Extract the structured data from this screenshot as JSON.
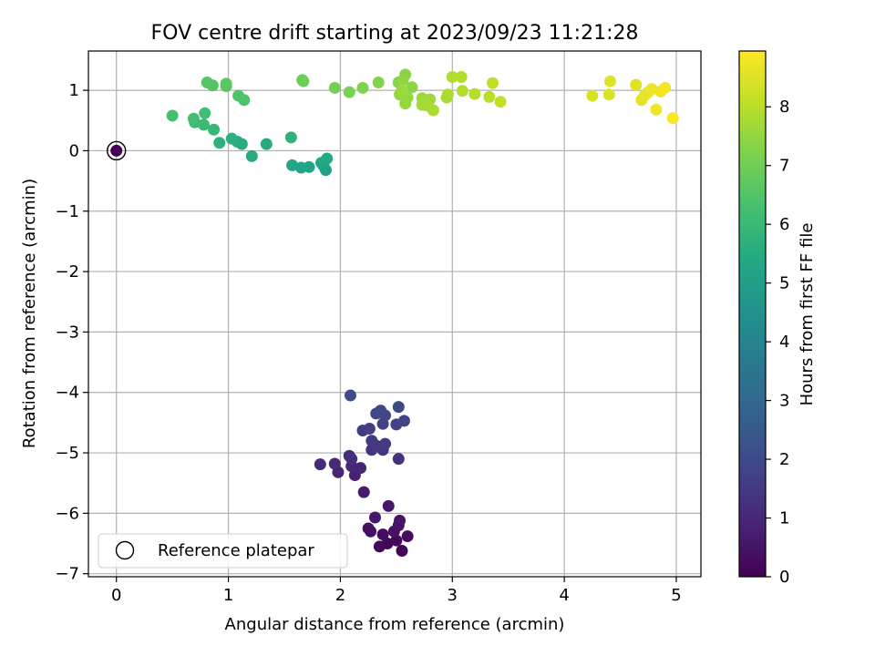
{
  "chart_data": {
    "type": "scatter",
    "title": "FOV centre drift starting at 2023/09/23 11:21:28",
    "xlabel": "Angular distance from reference (arcmin)",
    "ylabel": "Rotation from reference (arcmin)",
    "xlim": [
      -0.25,
      5.22
    ],
    "ylim": [
      -7.05,
      1.65
    ],
    "xticks": [
      0,
      1,
      2,
      3,
      4,
      5
    ],
    "yticks": [
      1,
      0,
      -1,
      -2,
      -3,
      -4,
      -5,
      -6,
      -7
    ],
    "grid": true,
    "colormap": "viridis",
    "colorbar": {
      "label": "Hours from first FF file",
      "range": [
        0,
        8.95
      ],
      "ticks": [
        0,
        1,
        2,
        3,
        4,
        5,
        6,
        7,
        8
      ]
    },
    "legend": {
      "placement": "lower-left",
      "entries": [
        {
          "label": "Reference platepar",
          "marker": "open-circle"
        }
      ]
    },
    "reference_point": {
      "x": 0,
      "y": 0,
      "hours": 0
    },
    "series": [
      {
        "name": "FOV centre",
        "points": [
          {
            "x": 2.55,
            "y": -6.62,
            "h": 0.05
          },
          {
            "x": 2.42,
            "y": -6.5,
            "h": 0.1
          },
          {
            "x": 2.35,
            "y": -6.55,
            "h": 0.15
          },
          {
            "x": 2.5,
            "y": -6.45,
            "h": 0.2
          },
          {
            "x": 2.6,
            "y": -6.38,
            "h": 0.25
          },
          {
            "x": 2.38,
            "y": -6.35,
            "h": 0.3
          },
          {
            "x": 2.25,
            "y": -6.25,
            "h": 0.35
          },
          {
            "x": 2.27,
            "y": -6.3,
            "h": 0.38
          },
          {
            "x": 2.48,
            "y": -6.3,
            "h": 0.42
          },
          {
            "x": 2.52,
            "y": -6.2,
            "h": 0.45
          },
          {
            "x": 2.53,
            "y": -6.12,
            "h": 0.5
          },
          {
            "x": 2.31,
            "y": -6.07,
            "h": 0.55
          },
          {
            "x": 2.43,
            "y": -5.88,
            "h": 0.6
          },
          {
            "x": 2.21,
            "y": -5.65,
            "h": 0.7
          },
          {
            "x": 2.13,
            "y": -5.37,
            "h": 0.8
          },
          {
            "x": 1.98,
            "y": -5.32,
            "h": 0.9
          },
          {
            "x": 2.18,
            "y": -5.25,
            "h": 0.95
          },
          {
            "x": 2.1,
            "y": -5.22,
            "h": 1.0
          },
          {
            "x": 1.82,
            "y": -5.19,
            "h": 1.05
          },
          {
            "x": 1.95,
            "y": -5.18,
            "h": 1.1
          },
          {
            "x": 2.08,
            "y": -5.05,
            "h": 1.15
          },
          {
            "x": 2.1,
            "y": -5.1,
            "h": 1.2
          },
          {
            "x": 2.52,
            "y": -5.1,
            "h": 1.3
          },
          {
            "x": 2.28,
            "y": -4.95,
            "h": 1.35
          },
          {
            "x": 2.38,
            "y": -4.95,
            "h": 1.4
          },
          {
            "x": 2.32,
            "y": -4.88,
            "h": 1.45
          },
          {
            "x": 2.4,
            "y": -4.85,
            "h": 1.5
          },
          {
            "x": 2.28,
            "y": -4.8,
            "h": 1.55
          },
          {
            "x": 2.2,
            "y": -4.63,
            "h": 1.6
          },
          {
            "x": 2.26,
            "y": -4.6,
            "h": 1.65
          },
          {
            "x": 2.38,
            "y": -4.52,
            "h": 1.7
          },
          {
            "x": 2.5,
            "y": -4.53,
            "h": 1.75
          },
          {
            "x": 2.57,
            "y": -4.47,
            "h": 1.8
          },
          {
            "x": 2.4,
            "y": -4.38,
            "h": 1.85
          },
          {
            "x": 2.32,
            "y": -4.35,
            "h": 1.9
          },
          {
            "x": 2.36,
            "y": -4.3,
            "h": 1.95
          },
          {
            "x": 2.52,
            "y": -4.24,
            "h": 2.0
          },
          {
            "x": 2.09,
            "y": -4.05,
            "h": 2.1
          },
          {
            "x": 1.87,
            "y": -0.32,
            "h": 5.1
          },
          {
            "x": 1.85,
            "y": -0.25,
            "h": 5.15
          },
          {
            "x": 1.65,
            "y": -0.28,
            "h": 5.2
          },
          {
            "x": 1.72,
            "y": -0.27,
            "h": 5.25
          },
          {
            "x": 1.57,
            "y": -0.24,
            "h": 5.3
          },
          {
            "x": 1.83,
            "y": -0.2,
            "h": 5.35
          },
          {
            "x": 1.88,
            "y": -0.13,
            "h": 5.4
          },
          {
            "x": 1.21,
            "y": -0.09,
            "h": 5.45
          },
          {
            "x": 1.34,
            "y": 0.11,
            "h": 5.5
          },
          {
            "x": 1.12,
            "y": 0.11,
            "h": 5.55
          },
          {
            "x": 1.08,
            "y": 0.15,
            "h": 5.6
          },
          {
            "x": 1.03,
            "y": 0.2,
            "h": 5.65
          },
          {
            "x": 0.92,
            "y": 0.13,
            "h": 5.7
          },
          {
            "x": 1.56,
            "y": 0.22,
            "h": 5.75
          },
          {
            "x": 0.87,
            "y": 0.35,
            "h": 6.0
          },
          {
            "x": 0.78,
            "y": 0.43,
            "h": 6.05
          },
          {
            "x": 0.7,
            "y": 0.47,
            "h": 6.1
          },
          {
            "x": 0.69,
            "y": 0.53,
            "h": 6.15
          },
          {
            "x": 0.79,
            "y": 0.62,
            "h": 6.2
          },
          {
            "x": 0.5,
            "y": 0.58,
            "h": 6.25
          },
          {
            "x": 1.14,
            "y": 0.84,
            "h": 6.4
          },
          {
            "x": 1.09,
            "y": 0.91,
            "h": 6.45
          },
          {
            "x": 0.86,
            "y": 1.08,
            "h": 6.5
          },
          {
            "x": 0.81,
            "y": 1.13,
            "h": 6.55
          },
          {
            "x": 0.98,
            "y": 1.07,
            "h": 6.6
          },
          {
            "x": 0.98,
            "y": 1.11,
            "h": 6.65
          },
          {
            "x": 1.66,
            "y": 1.17,
            "h": 6.9
          },
          {
            "x": 1.67,
            "y": 1.15,
            "h": 6.95
          },
          {
            "x": 1.95,
            "y": 1.04,
            "h": 7.05
          },
          {
            "x": 2.08,
            "y": 0.97,
            "h": 7.15
          },
          {
            "x": 2.2,
            "y": 1.04,
            "h": 7.2
          },
          {
            "x": 2.34,
            "y": 1.13,
            "h": 7.25
          },
          {
            "x": 2.52,
            "y": 1.13,
            "h": 7.3
          },
          {
            "x": 2.58,
            "y": 1.26,
            "h": 7.35
          },
          {
            "x": 2.64,
            "y": 1.05,
            "h": 7.4
          },
          {
            "x": 2.56,
            "y": 1.17,
            "h": 7.45
          },
          {
            "x": 2.53,
            "y": 0.93,
            "h": 7.5
          },
          {
            "x": 2.6,
            "y": 0.88,
            "h": 7.52
          },
          {
            "x": 2.58,
            "y": 0.78,
            "h": 7.55
          },
          {
            "x": 2.55,
            "y": 1.0,
            "h": 7.6
          },
          {
            "x": 2.73,
            "y": 0.87,
            "h": 7.62
          },
          {
            "x": 2.77,
            "y": 0.82,
            "h": 7.65
          },
          {
            "x": 2.8,
            "y": 0.85,
            "h": 7.7
          },
          {
            "x": 2.73,
            "y": 0.76,
            "h": 7.72
          },
          {
            "x": 2.77,
            "y": 0.75,
            "h": 7.75
          },
          {
            "x": 2.83,
            "y": 0.67,
            "h": 7.78
          },
          {
            "x": 2.95,
            "y": 0.88,
            "h": 7.8
          },
          {
            "x": 2.96,
            "y": 0.93,
            "h": 7.82
          },
          {
            "x": 3.0,
            "y": 1.22,
            "h": 7.85
          },
          {
            "x": 3.08,
            "y": 1.22,
            "h": 7.9
          },
          {
            "x": 3.09,
            "y": 0.99,
            "h": 7.92
          },
          {
            "x": 3.2,
            "y": 0.94,
            "h": 7.95
          },
          {
            "x": 3.33,
            "y": 0.89,
            "h": 8.0
          },
          {
            "x": 3.36,
            "y": 1.12,
            "h": 8.05
          },
          {
            "x": 3.43,
            "y": 0.81,
            "h": 8.1
          },
          {
            "x": 4.25,
            "y": 0.91,
            "h": 8.4
          },
          {
            "x": 4.4,
            "y": 0.93,
            "h": 8.45
          },
          {
            "x": 4.41,
            "y": 1.15,
            "h": 8.5
          },
          {
            "x": 4.64,
            "y": 1.09,
            "h": 8.55
          },
          {
            "x": 4.69,
            "y": 0.84,
            "h": 8.6
          },
          {
            "x": 4.72,
            "y": 0.92,
            "h": 8.62
          },
          {
            "x": 4.75,
            "y": 0.97,
            "h": 8.65
          },
          {
            "x": 4.78,
            "y": 1.02,
            "h": 8.7
          },
          {
            "x": 4.82,
            "y": 0.68,
            "h": 8.72
          },
          {
            "x": 4.86,
            "y": 0.98,
            "h": 8.75
          },
          {
            "x": 4.9,
            "y": 1.04,
            "h": 8.8
          },
          {
            "x": 4.97,
            "y": 0.54,
            "h": 8.9
          }
        ]
      }
    ]
  }
}
